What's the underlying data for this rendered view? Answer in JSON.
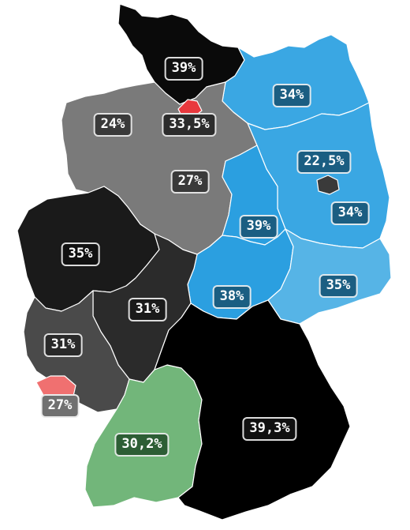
{
  "map": {
    "regions": [
      {
        "name": "schleswig-holstein",
        "label": "39%",
        "fill": "#0a0a0a",
        "box": "#111111"
      },
      {
        "name": "mecklenburg-vorpommern",
        "label": "34%",
        "fill": "#3aa7e3",
        "box": "#1b5e82"
      },
      {
        "name": "hamburg",
        "label": "33,5%",
        "fill": "#e8383d",
        "box": "#2c2c2c"
      },
      {
        "name": "lower-saxony",
        "label": "24%",
        "fill": "#7a7a7a",
        "box": "#3a3a3a"
      },
      {
        "name": "lower-saxony-center",
        "label": "27%",
        "fill": "#7a7a7a",
        "box": "#3a3a3a"
      },
      {
        "name": "brandenburg",
        "label": "22,5%",
        "fill": "#3aa7e3",
        "box": "#1b5e82"
      },
      {
        "name": "brandenburg-east",
        "label": "34%",
        "fill": "#3aa7e3",
        "box": "#1b5e82"
      },
      {
        "name": "saxony-anhalt",
        "label": "39%",
        "fill": "#2b9fe0",
        "box": "#1b5e82"
      },
      {
        "name": "north-rhine-westphalia",
        "label": "35%",
        "fill": "#1a1a1a",
        "box": "#111111"
      },
      {
        "name": "thuringia",
        "label": "38%",
        "fill": "#2b9fe0",
        "box": "#1b5e82"
      },
      {
        "name": "saxony",
        "label": "35%",
        "fill": "#56b4e6",
        "box": "#1b5e82"
      },
      {
        "name": "hesse",
        "label": "31%",
        "fill": "#2b2b2b",
        "box": "#1a1a1a"
      },
      {
        "name": "rhineland-palatinate",
        "label": "31%",
        "fill": "#4a4a4a",
        "box": "#2a2a2a"
      },
      {
        "name": "saarland",
        "label": "27%",
        "fill": "#f07070",
        "box": "#707070"
      },
      {
        "name": "baden-wuerttemberg",
        "label": "30,2%",
        "fill": "#72b67a",
        "box": "#2d5e35"
      },
      {
        "name": "bavaria",
        "label": "39,3%",
        "fill": "#000000",
        "box": "#111111"
      },
      {
        "name": "berlin",
        "label": "",
        "fill": "#3a3a3a",
        "box": ""
      }
    ]
  }
}
